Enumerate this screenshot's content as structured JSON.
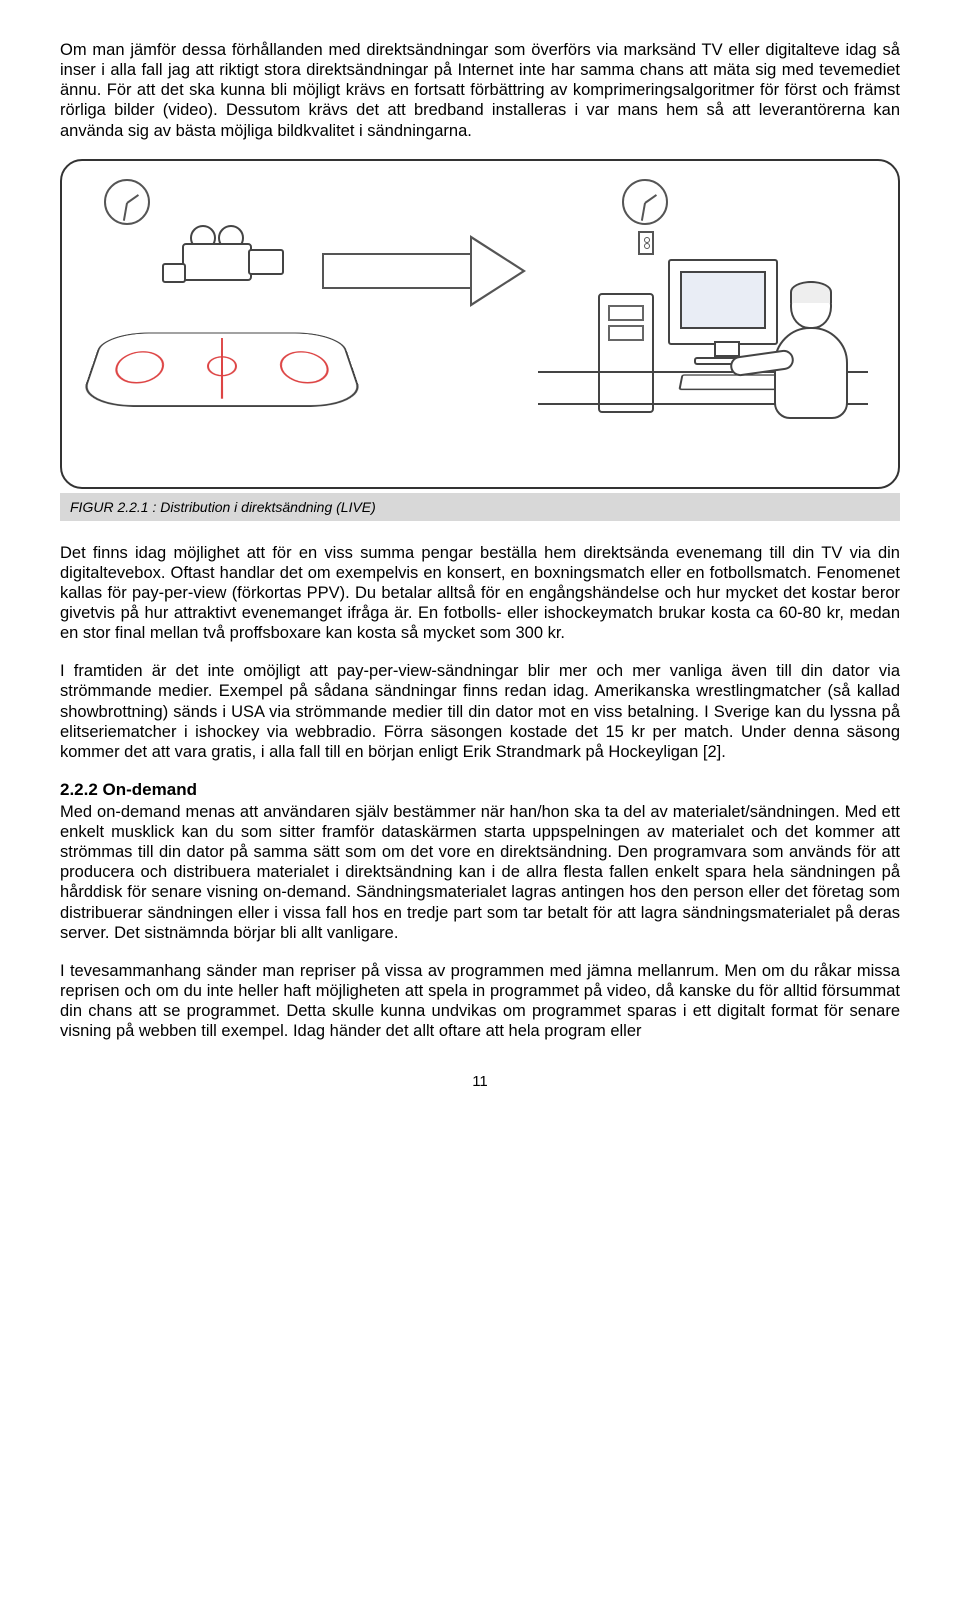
{
  "paragraphs": {
    "p1": "Om man jämför dessa förhållanden med direktsändningar som överförs via marksänd TV eller digitalteve idag så inser i alla fall jag att riktigt stora direktsändningar på Internet inte har samma chans att mäta sig med tevemediet ännu. För att det ska kunna bli möjligt krävs en fortsatt förbättring av komprimeringsalgoritmer för först och främst rörliga bilder (video). Dessutom krävs det att bredband installeras i var mans hem så att leverantörerna kan använda sig av bästa möjliga bildkvalitet i sändningarna.",
    "p2": "Det finns idag möjlighet att för en viss summa pengar beställa hem direktsända evenemang till din TV via din digitaltevebox. Oftast handlar det om exempelvis en konsert, en boxningsmatch eller en fotbollsmatch. Fenomenet kallas för pay-per-view (förkortas PPV). Du betalar alltså för en engångshändelse och hur mycket det kostar beror givetvis på hur attraktivt evenemanget ifråga är. En fotbolls- eller ishockeymatch brukar kosta ca 60-80 kr, medan en stor final mellan två proffsboxare kan kosta så mycket som 300 kr.",
    "p3": "I framtiden är det inte omöjligt att pay-per-view-sändningar blir mer och mer vanliga även till din dator via strömmande medier. Exempel på sådana sändningar finns redan idag. Amerikanska wrestlingmatcher (så kallad showbrottning) sänds i USA via strömmande medier till din dator mot en viss betalning. I Sverige kan du lyssna på elitseriematcher i ishockey via webbradio. Förra säsongen kostade det 15 kr per match. Under denna säsong kommer det att vara gratis, i alla fall till en början enligt Erik Strandmark på Hockeyligan [2].",
    "h1": "2.2.2   On-demand",
    "p4": "Med on-demand menas att användaren själv bestämmer när han/hon ska ta del av materialet/sändningen. Med ett enkelt musklick kan du som sitter framför dataskärmen starta uppspelningen av materialet och det kommer att strömmas till din dator på samma sätt som om det vore en direktsändning. Den programvara som används för att producera och distribuera materialet i direktsändning kan i de allra flesta fallen enkelt spara hela sändningen på hårddisk för senare visning on-demand. Sändningsmaterialet lagras antingen hos den person eller det företag som distribuerar sändningen eller i vissa fall hos en tredje part som tar betalt för att lagra sändningsmaterialet på deras server. Det sistnämnda börjar bli allt vanligare.",
    "p5": "I tevesammanhang sänder man repriser på vissa av programmen med jämna mellanrum. Men om du råkar missa reprisen och om du inte heller haft möjligheten att spela in programmet på video, då kanske du för alltid försummat din chans att se programmet. Detta skulle kunna undvikas om programmet sparas i ett digitalt format för senare visning på webben till exempel. Idag händer det allt oftare att hela program eller"
  },
  "figure": {
    "caption": "FIGUR 2.2.1 : Distribution i direktsändning (LIVE)"
  },
  "page_number": "11"
}
